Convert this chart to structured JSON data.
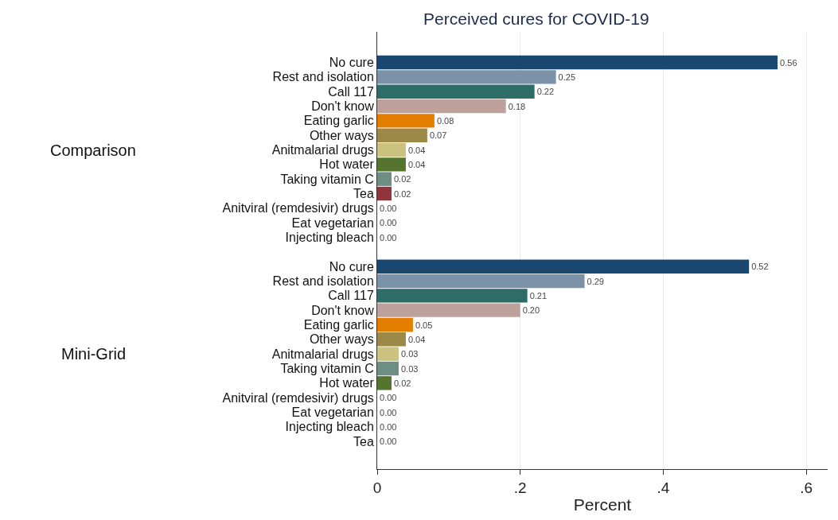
{
  "chart_data": {
    "type": "bar",
    "orientation": "horizontal",
    "title": "Perceived cures for COVID-19",
    "xlabel": "Percent",
    "categories": [
      "No cure",
      "Rest and isolation",
      "Call 117",
      "Don't know",
      "Eating garlic",
      "Other ways",
      "Anitmalarial drugs",
      "Hot water",
      "Taking vitamin C",
      "Tea",
      "Anitviral (remdesivir) drugs",
      "Eat vegetarian",
      "Injecting bleach",
      null,
      "No cure",
      "Rest and isolation",
      "Call 117",
      "Don't know",
      "Eating garlic",
      "Other ways",
      "Anitmalarial drugs",
      "Taking vitamin C",
      "Hot water",
      "Anitviral (remdesivir) drugs",
      "Eat vegetarian",
      "Injecting bleach",
      "Tea"
    ],
    "values": [
      0.56,
      0.25,
      0.22,
      0.18,
      0.08,
      0.07,
      0.04,
      0.04,
      0.02,
      0.02,
      0,
      0,
      0,
      null,
      0.52,
      0.29,
      0.21,
      0.2,
      0.05,
      0.04,
      0.03,
      0.03,
      0.02,
      0,
      0,
      0,
      0
    ],
    "value_labels": [
      "0.56",
      "0.25",
      "0.22",
      "0.18",
      "0.08",
      "0.07",
      "0.04",
      "0.04",
      "0.02",
      "0.02",
      "0.00",
      "0.00",
      "0.00",
      null,
      "0.52",
      "0.29",
      "0.21",
      "0.20",
      "0.05",
      "0.04",
      "0.03",
      "0.03",
      "0.02",
      "0.00",
      "0.00",
      "0.00",
      "0.00"
    ],
    "colors": [
      "#1a476f",
      "#7b92a8",
      "#2d6d66",
      "#bfa19c",
      "#e37e00",
      "#9c8847",
      "#cac27e",
      "#55752f",
      "#6e8e84",
      "#90353b",
      "#1a476f",
      "#1a476f",
      "#1a476f",
      null,
      "#1a476f",
      "#7b92a8",
      "#2d6d66",
      "#bfa19c",
      "#e37e00",
      "#9c8847",
      "#cac27e",
      "#6e8e84",
      "#55752f",
      "#1a476f",
      "#1a476f",
      "#1a476f",
      "#1a476f"
    ],
    "annotations": [
      "Comparison",
      "Mini-Grid"
    ],
    "xlim": [
      0,
      0.63
    ],
    "xticks": [
      0,
      {
        "value": 0.2,
        "label": ".2"
      },
      {
        "value": 0.4,
        "label": ".4"
      },
      {
        "value": 0.6,
        "label": ".6"
      }
    ],
    "grid": "x"
  }
}
